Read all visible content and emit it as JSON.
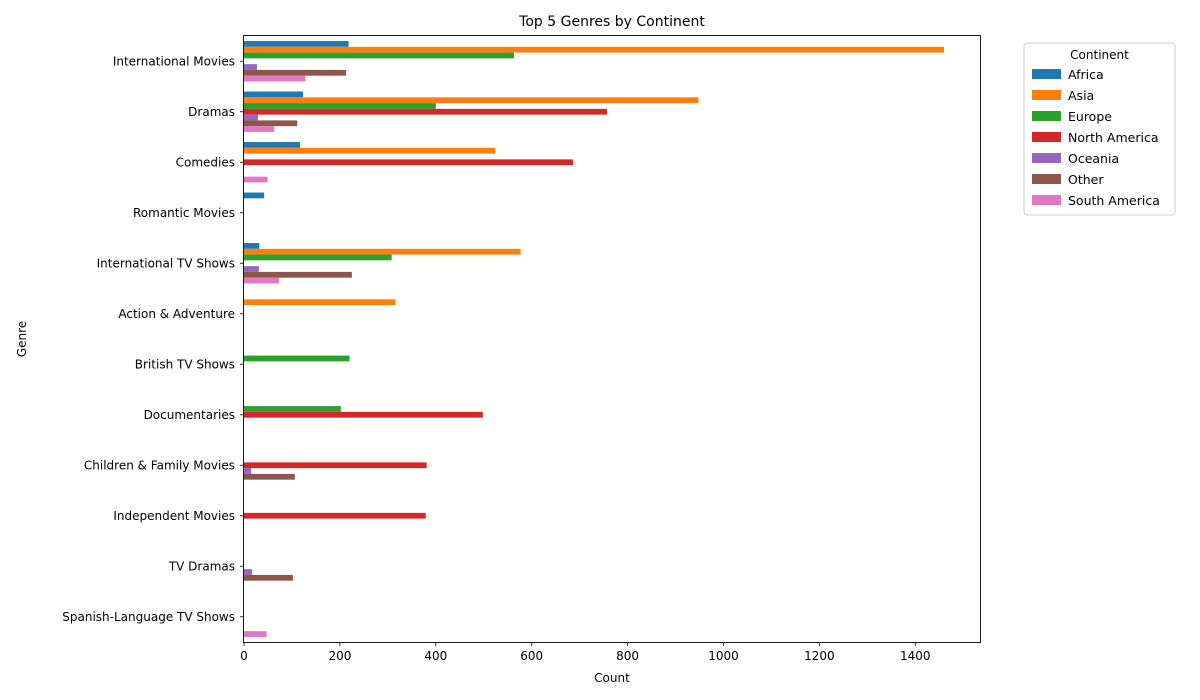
{
  "chart_data": {
    "type": "bar",
    "orientation": "horizontal",
    "title": "Top 5 Genres by Continent",
    "xlabel": "Count",
    "ylabel": "Genre",
    "xlim": [
      0,
      1535
    ],
    "xticks": [
      0,
      200,
      400,
      600,
      800,
      1000,
      1200,
      1400
    ],
    "grid": false,
    "legend": {
      "title": "Continent",
      "placement": "outside-top-right"
    },
    "categories": [
      "International Movies",
      "Dramas",
      "Comedies",
      "Romantic Movies",
      "International TV Shows",
      "Action & Adventure",
      "British TV Shows",
      "Documentaries",
      "Children & Family Movies",
      "Independent Movies",
      "TV Dramas",
      "Spanish-Language TV Shows"
    ],
    "series": [
      {
        "name": "Africa",
        "color": "#1f77b4",
        "values": [
          218,
          123,
          117,
          42,
          32,
          null,
          null,
          null,
          null,
          null,
          null,
          null
        ]
      },
      {
        "name": "Asia",
        "color": "#ff7f0e",
        "values": [
          1460,
          948,
          524,
          null,
          577,
          316,
          null,
          null,
          null,
          null,
          null,
          null
        ]
      },
      {
        "name": "Europe",
        "color": "#2ca02c",
        "values": [
          563,
          400,
          null,
          null,
          308,
          null,
          220,
          202,
          null,
          null,
          null,
          null
        ]
      },
      {
        "name": "North America",
        "color": "#d62728",
        "values": [
          null,
          757,
          686,
          null,
          null,
          null,
          null,
          498,
          381,
          379,
          null,
          null
        ]
      },
      {
        "name": "Oceania",
        "color": "#9467bd",
        "values": [
          27,
          29,
          null,
          null,
          31,
          null,
          null,
          null,
          15,
          null,
          17,
          null
        ]
      },
      {
        "name": "Other",
        "color": "#8c564b",
        "values": [
          213,
          111,
          null,
          null,
          225,
          null,
          null,
          null,
          106,
          null,
          102,
          null
        ]
      },
      {
        "name": "South America",
        "color": "#e377c2",
        "values": [
          128,
          63,
          49,
          null,
          73,
          null,
          null,
          null,
          null,
          null,
          null,
          47
        ]
      }
    ]
  }
}
